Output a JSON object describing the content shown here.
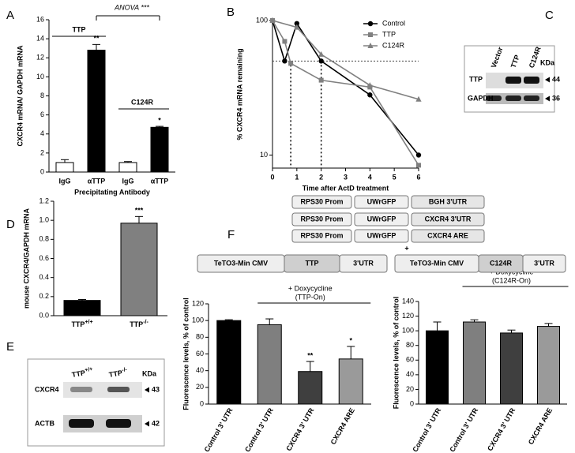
{
  "panel_labels": [
    "A",
    "B",
    "C",
    "D",
    "E",
    "F"
  ],
  "chart_data": [
    {
      "type": "bar",
      "ylabel": "CXCR4 mRNA/ GAPDH mRNA",
      "xlabel": "Precipitating Antibody",
      "categories": [
        "IgG",
        "αTTP",
        "IgG",
        "αTTP"
      ],
      "values": [
        1,
        12.8,
        1,
        4.7
      ],
      "errors": [
        0.3,
        0.6,
        0.1,
        0.1
      ],
      "colors": [
        "#ffffff",
        "#000000",
        "#ffffff",
        "#000000"
      ],
      "significance": [
        null,
        "**",
        null,
        "*"
      ],
      "ylim": [
        0,
        16
      ],
      "yticks": [
        0,
        2,
        4,
        6,
        8,
        10,
        12,
        14,
        16
      ],
      "annotations": [
        "ANOVA ***",
        "TTP",
        "C124R"
      ]
    },
    {
      "type": "line",
      "ylabel": "% CXCR4 mRNA remaining",
      "xlabel": "Time after ActD treatment",
      "log_y": true,
      "xlim": [
        0,
        6
      ],
      "xticks": [
        0,
        1,
        2,
        3,
        4,
        5,
        6
      ],
      "ylim": [
        8,
        100
      ],
      "yticks": [
        10,
        100
      ],
      "reference_y": 50,
      "reference_x": [
        0.75,
        2
      ],
      "legend": "top-right",
      "series": [
        {
          "name": "Control",
          "color": "#000000",
          "marker": "circle",
          "x": [
            0,
            0.5,
            1,
            2,
            4,
            6
          ],
          "values": [
            100,
            50,
            95,
            50,
            28,
            10
          ]
        },
        {
          "name": "TTP",
          "color": "#808080",
          "marker": "square",
          "x": [
            0,
            0.5,
            0.75,
            2,
            4,
            6
          ],
          "values": [
            100,
            70,
            48,
            36,
            32,
            8.4
          ]
        },
        {
          "name": "C124R",
          "color": "#808080",
          "marker": "triangle",
          "x": [
            0,
            1,
            2,
            4,
            6
          ],
          "values": [
            100,
            89,
            56,
            33,
            26
          ]
        }
      ]
    },
    {
      "type": "bar",
      "ylabel": "mouse CXCR4/GAPDH mRNA",
      "categories": [
        "TTP",
        "TTP"
      ],
      "category_superscripts": [
        "+/+",
        "-/-"
      ],
      "values": [
        0.16,
        0.97
      ],
      "errors": [
        0.01,
        0.07
      ],
      "colors": [
        "#000000",
        "#808080"
      ],
      "significance": [
        null,
        "***"
      ],
      "ylim": [
        0,
        1.2
      ],
      "yticks": [
        {
          "value": 0,
          "label": "0.0"
        },
        0.2,
        0.4,
        0.6,
        0.8,
        {
          "value": 1,
          "label": "1.0"
        },
        {
          "value": 1.2,
          "label": "1.2"
        }
      ]
    },
    {
      "type": "bar",
      "ylabel": "Fluorescence levels, % of control",
      "categories": [
        "Control 3' UTR",
        "Control 3' UTR",
        "CXCR4 3' UTR",
        "CXCR4 ARE"
      ],
      "values": [
        100,
        95,
        39,
        54
      ],
      "errors": [
        1,
        7,
        12,
        15
      ],
      "colors": [
        "#000000",
        "#7f7f7f",
        "#3f3f3f",
        "#9a9a9a"
      ],
      "significance": [
        null,
        null,
        "**",
        "*"
      ],
      "ylim": [
        0,
        120
      ],
      "yticks": [
        0,
        20,
        40,
        60,
        80,
        100,
        120
      ],
      "annotations": [
        "+ Doxycycline",
        "(TTP-On)"
      ]
    },
    {
      "type": "bar",
      "ylabel": "Fluorescence levels, % of control",
      "categories": [
        "Control 3' UTR",
        "Control 3' UTR",
        "CXCR4 3' UTR",
        "CXCR4 ARE"
      ],
      "values": [
        100,
        112,
        97,
        106
      ],
      "errors": [
        12,
        3,
        4,
        4
      ],
      "colors": [
        "#000000",
        "#7f7f7f",
        "#3f3f3f",
        "#9a9a9a"
      ],
      "significance": [
        null,
        null,
        null,
        null
      ],
      "ylim": [
        0,
        140
      ],
      "yticks": [
        0,
        20,
        40,
        60,
        80,
        100,
        120,
        140
      ],
      "annotations": [
        "+ Doxycycline",
        "(C124R-On)"
      ]
    }
  ],
  "blot_c": {
    "lanes": [
      "Vector",
      "TTP",
      "C124R"
    ],
    "unit": "KDa",
    "rows": [
      "TTP",
      "GAPDH"
    ],
    "sizes": [
      44,
      36
    ]
  },
  "blot_e": {
    "lanes": [
      {
        "base": "TTP",
        "sup": "+/+"
      },
      {
        "base": "TTP",
        "sup": "-/-"
      }
    ],
    "unit": "KDa",
    "rows": [
      "CXCR4",
      "ACTB"
    ],
    "sizes": [
      43,
      42
    ]
  },
  "constructs": {
    "reporters": [
      [
        "RPS30 Prom",
        "UWrGFP",
        "BGH 3'UTR"
      ],
      [
        "RPS30 Prom",
        "UWrGFP",
        "CXCR4 3'UTR"
      ],
      [
        "RPS30 Prom",
        "UWrGFP",
        "CXCR4 ARE"
      ]
    ],
    "inducers": [
      [
        "TeTO3-Min CMV",
        "TTP",
        "3'UTR"
      ],
      [
        "TeTO3-Min CMV",
        "C124R",
        "3'UTR"
      ]
    ],
    "plus": "+"
  }
}
